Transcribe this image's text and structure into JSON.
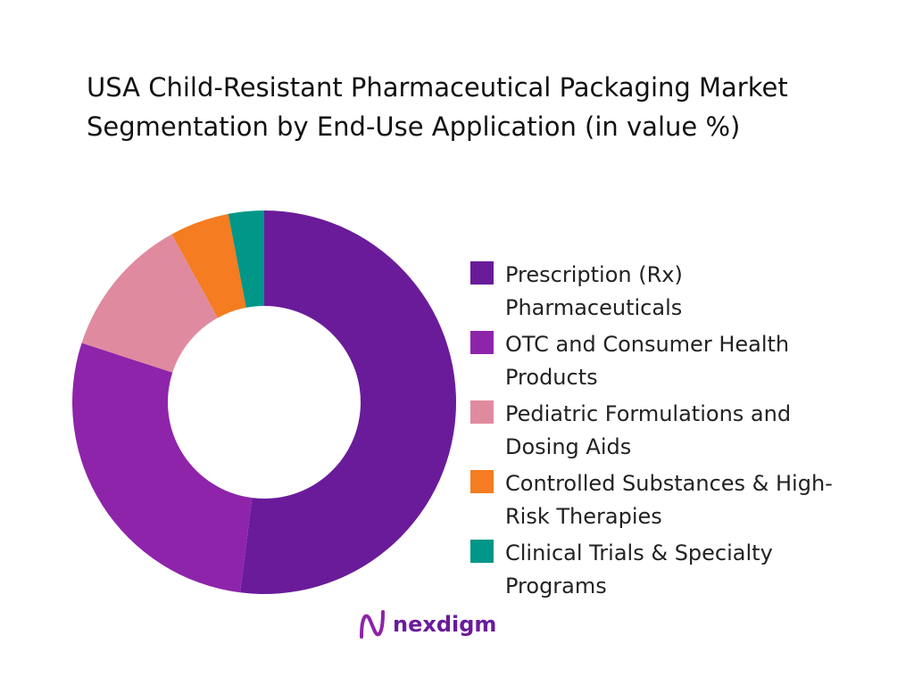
{
  "chart_data": {
    "type": "pie",
    "donut": true,
    "title": "USA Child-Resistant Pharmaceutical Packaging Market Segmentation by End-Use Application (in value %)",
    "categories": [
      "Prescription (Rx) Pharmaceuticals",
      "OTC and Consumer Health Products",
      "Pediatric Formulations and Dosing Aids",
      "Controlled Substances & High-Risk Therapies",
      "Clinical Trials & Specialty Programs"
    ],
    "values": [
      52,
      28,
      12,
      5,
      3
    ],
    "colors": [
      "#6a1b9a",
      "#8e24aa",
      "#e08aa0",
      "#f57c20",
      "#009688"
    ],
    "legend_position": "right"
  },
  "logo": {
    "text": "nexdigm"
  }
}
